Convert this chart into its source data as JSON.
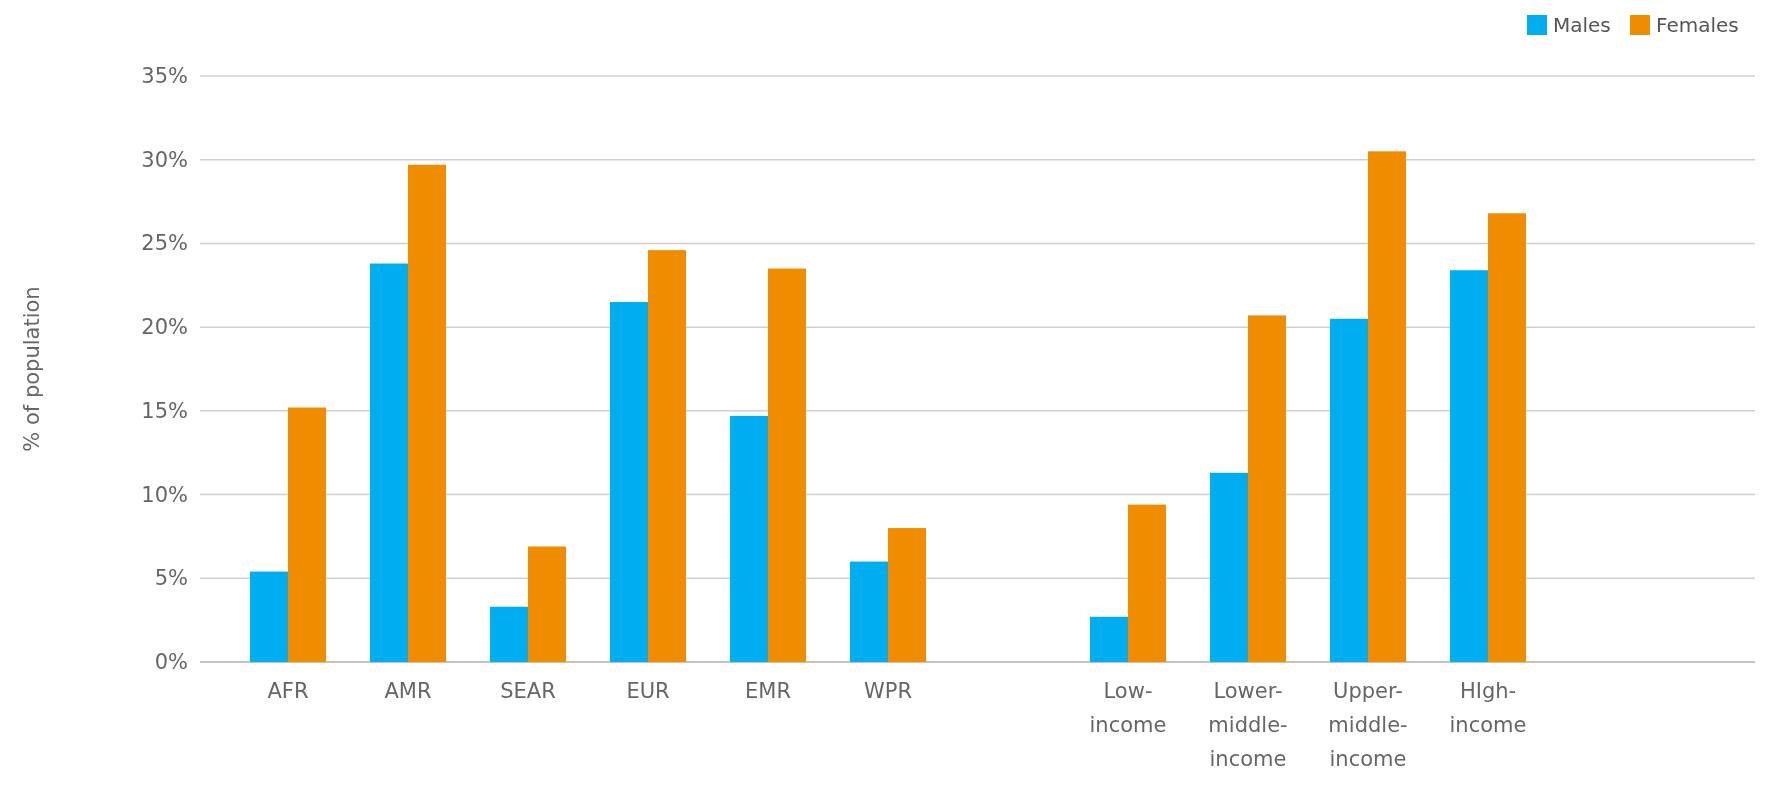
{
  "chart_data": {
    "type": "bar",
    "ylabel": "% of population",
    "categories": [
      "AFR",
      "AMR",
      "SEAR",
      "EUR",
      "EMR",
      "WPR",
      null,
      "Low-income",
      "Lower-middle-income",
      "Upper-middle-income",
      "HIgh-income"
    ],
    "series": [
      {
        "name": "Males",
        "color": "#00aeef",
        "values": [
          5.4,
          23.8,
          3.3,
          21.5,
          14.7,
          6.0,
          null,
          2.7,
          11.3,
          20.5,
          23.4
        ]
      },
      {
        "name": "Females",
        "color": "#f08c00",
        "values": [
          15.2,
          29.7,
          6.9,
          24.6,
          23.5,
          8.0,
          null,
          9.4,
          20.7,
          30.5,
          26.8
        ]
      }
    ],
    "ylim": [
      0,
      35
    ],
    "yticks": [
      {
        "value": 0,
        "label": "0%"
      },
      {
        "value": 5,
        "label": "5%"
      },
      {
        "value": 10,
        "label": "10%"
      },
      {
        "value": 15,
        "label": "15%"
      },
      {
        "value": 20,
        "label": "20%"
      },
      {
        "value": 25,
        "label": "25%"
      },
      {
        "value": 30,
        "label": "30%"
      },
      {
        "value": 35,
        "label": "35%"
      }
    ],
    "grid": "y",
    "legend": "top right"
  }
}
